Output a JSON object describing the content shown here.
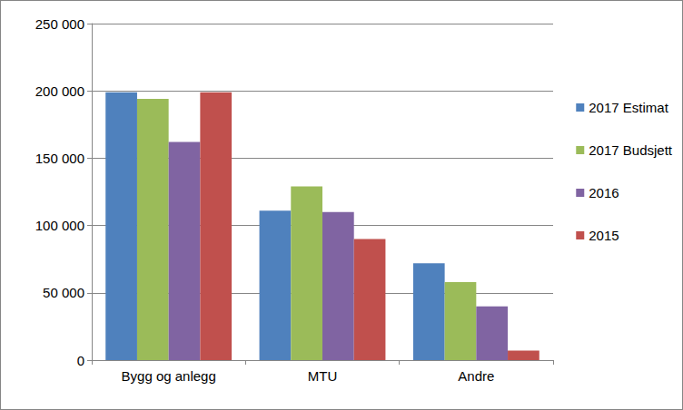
{
  "chart_data": {
    "type": "bar",
    "categories": [
      "Bygg og anlegg",
      "MTU",
      "Andre"
    ],
    "series": [
      {
        "name": "2017 Estimat",
        "color": "#4f81bd",
        "values": [
          199000,
          111000,
          72000
        ]
      },
      {
        "name": "2017 Budsjett",
        "color": "#9bbb59",
        "values": [
          194000,
          129000,
          58000
        ]
      },
      {
        "name": "2016",
        "color": "#8064a2",
        "values": [
          162000,
          110000,
          40000
        ]
      },
      {
        "name": "2015",
        "color": "#c0504d",
        "values": [
          199000,
          90000,
          7000
        ]
      }
    ],
    "ylim": [
      0,
      250000
    ],
    "yticks": [
      0,
      {
        "value": 50000,
        "label": "50 000"
      },
      {
        "value": 100000,
        "label": "100 000"
      },
      {
        "value": 150000,
        "label": "150 000"
      },
      {
        "value": 200000,
        "label": "200 000"
      },
      {
        "value": 250000,
        "label": "250 000"
      }
    ],
    "grid": true,
    "legend": "right"
  }
}
